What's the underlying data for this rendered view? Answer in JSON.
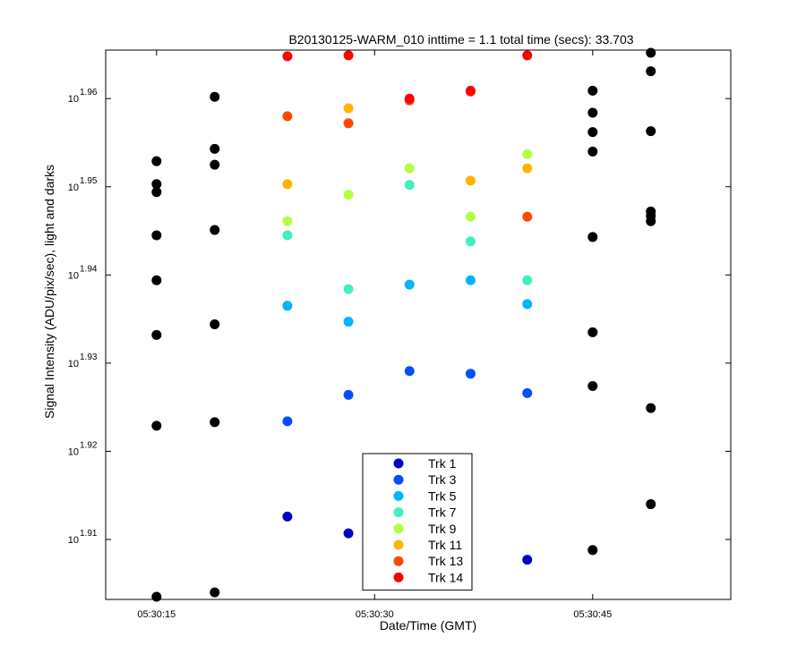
{
  "chart_data": {
    "type": "scatter",
    "title": "B20130125-WARM_010 inttime = 1.1 total time (secs): 33.703",
    "xlabel": "Date/Time (GMT)",
    "ylabel": "Signal Intensity (ADU/pix/sec), light and darks",
    "y_scale": "log",
    "xlim": [
      "05:30:11.5",
      "05:30:54.5"
    ],
    "ylim_exponent": [
      1.9032,
      1.9655
    ],
    "x_ticks": [
      {
        "time": "05:30:15",
        "label": "05:30:15"
      },
      {
        "time": "05:30:30",
        "label": "05:30:30"
      },
      {
        "time": "05:30:45",
        "label": "05:30:45"
      }
    ],
    "y_ticks": [
      {
        "exponent": 1.91,
        "base": "10",
        "exp_label": "1.91"
      },
      {
        "exponent": 1.92,
        "base": "10",
        "exp_label": "1.92"
      },
      {
        "exponent": 1.93,
        "base": "10",
        "exp_label": "1.93"
      },
      {
        "exponent": 1.94,
        "base": "10",
        "exp_label": "1.94"
      },
      {
        "exponent": 1.95,
        "base": "10",
        "exp_label": "1.95"
      },
      {
        "exponent": 1.96,
        "base": "10",
        "exp_label": "1.96"
      }
    ],
    "legend_position": "bottom-center",
    "series": [
      {
        "name": "Trk 1",
        "color": "#0000c0",
        "in_legend": true,
        "points": [
          [
            "05:30:24",
            1.9126
          ],
          [
            "05:30:28.2",
            1.9107
          ],
          [
            "05:30:40.5",
            1.9077
          ]
        ]
      },
      {
        "name": "Trk 3",
        "color": "#0050ff",
        "in_legend": true,
        "points": [
          [
            "05:30:24",
            1.9234
          ],
          [
            "05:30:28.2",
            1.9264
          ],
          [
            "05:30:32.4",
            1.9291
          ],
          [
            "05:30:36.6",
            1.9288
          ],
          [
            "05:30:40.5",
            1.9266
          ]
        ]
      },
      {
        "name": "Trk 5",
        "color": "#00b4ff",
        "in_legend": true,
        "points": [
          [
            "05:30:24",
            1.9365
          ],
          [
            "05:30:28.2",
            1.9347
          ],
          [
            "05:30:32.4",
            1.9389
          ],
          [
            "05:30:36.6",
            1.9394
          ],
          [
            "05:30:40.5",
            1.9367
          ]
        ]
      },
      {
        "name": "Trk 7",
        "color": "#40f0c0",
        "in_legend": true,
        "points": [
          [
            "05:30:24",
            1.9445
          ],
          [
            "05:30:28.2",
            1.9384
          ],
          [
            "05:30:32.4",
            1.9502
          ],
          [
            "05:30:36.6",
            1.9438
          ],
          [
            "05:30:40.5",
            1.9394
          ]
        ]
      },
      {
        "name": "Trk 9",
        "color": "#b4ff40",
        "in_legend": true,
        "points": [
          [
            "05:30:24",
            1.9461
          ],
          [
            "05:30:28.2",
            1.9491
          ],
          [
            "05:30:32.4",
            1.9521
          ],
          [
            "05:30:36.6",
            1.9466
          ],
          [
            "05:30:40.5",
            1.9537
          ]
        ]
      },
      {
        "name": "Trk 11",
        "color": "#ffb400",
        "in_legend": true,
        "points": [
          [
            "05:30:24",
            1.9503
          ],
          [
            "05:30:28.2",
            1.9589
          ],
          [
            "05:30:36.6",
            1.9507
          ],
          [
            "05:30:40.5",
            1.9521
          ]
        ]
      },
      {
        "name": "Trk 13",
        "color": "#ff4800",
        "in_legend": true,
        "points": [
          [
            "05:30:24",
            1.958
          ],
          [
            "05:30:28.2",
            1.9572
          ],
          [
            "05:30:32.4",
            1.9598
          ],
          [
            "05:30:36.6",
            1.9608
          ],
          [
            "05:30:40.5",
            1.9466
          ]
        ]
      },
      {
        "name": "Trk 14",
        "color": "#ff0000",
        "in_legend": true,
        "points": [
          [
            "05:30:24",
            1.9648
          ],
          [
            "05:30:28.2",
            1.9649
          ],
          [
            "05:30:32.4",
            1.96
          ],
          [
            "05:30:36.6",
            1.9609
          ],
          [
            "05:30:40.5",
            1.9649
          ]
        ]
      },
      {
        "name": "",
        "color": "#000000",
        "in_legend": false,
        "points": [
          [
            "05:30:15",
            1.9529
          ],
          [
            "05:30:15",
            1.9503
          ],
          [
            "05:30:15",
            1.9494
          ],
          [
            "05:30:15",
            1.9445
          ],
          [
            "05:30:15",
            1.9394
          ],
          [
            "05:30:15",
            1.9332
          ],
          [
            "05:30:15",
            1.9229
          ],
          [
            "05:30:15",
            1.9035
          ],
          [
            "05:30:19",
            1.9602
          ],
          [
            "05:30:19",
            1.9543
          ],
          [
            "05:30:19",
            1.9525
          ],
          [
            "05:30:19",
            1.9451
          ],
          [
            "05:30:19",
            1.9344
          ],
          [
            "05:30:19",
            1.9233
          ],
          [
            "05:30:19",
            1.904
          ],
          [
            "05:30:45",
            1.9609
          ],
          [
            "05:30:45",
            1.9584
          ],
          [
            "05:30:45",
            1.9562
          ],
          [
            "05:30:45",
            1.954
          ],
          [
            "05:30:45",
            1.9443
          ],
          [
            "05:30:45",
            1.9335
          ],
          [
            "05:30:45",
            1.9274
          ],
          [
            "05:30:45",
            1.9088
          ],
          [
            "05:30:49",
            1.9652
          ],
          [
            "05:30:49",
            1.9631
          ],
          [
            "05:30:49",
            1.9563
          ],
          [
            "05:30:49",
            1.9472
          ],
          [
            "05:30:49",
            1.9467
          ],
          [
            "05:30:49",
            1.9461
          ],
          [
            "05:30:49",
            1.9249
          ],
          [
            "05:30:49",
            1.914
          ]
        ]
      }
    ]
  }
}
